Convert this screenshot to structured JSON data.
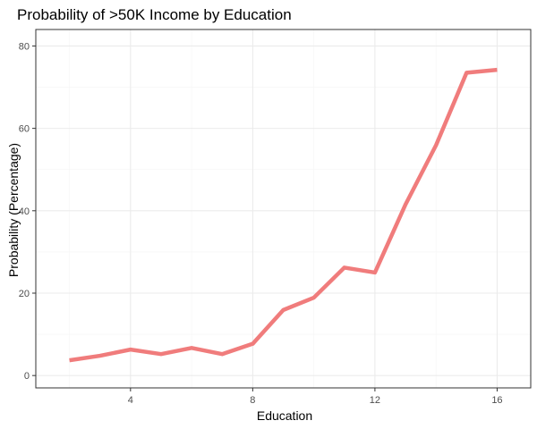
{
  "chart_data": {
    "type": "line",
    "title": "Probability of >50K Income by Education",
    "xlabel": "Education",
    "ylabel": "Probability (Percentage)",
    "xlim": [
      0.9,
      17.1
    ],
    "ylim": [
      -3,
      84
    ],
    "xticks": [
      4,
      8,
      12,
      16
    ],
    "yticks": [
      0,
      20,
      40,
      60,
      80
    ],
    "grid": true,
    "legend": "none",
    "colors": {
      "line": "#F07C7C",
      "grid_major": "#EBEBEB",
      "grid_minor": "#F5F5F5",
      "panel_border": "#333333",
      "tick": "#333333"
    },
    "series": [
      {
        "x": [
          2,
          3,
          4,
          5,
          6,
          7,
          8,
          9,
          10,
          11,
          12,
          13,
          14,
          15,
          16
        ],
        "y": [
          3.7,
          4.8,
          6.3,
          5.2,
          6.7,
          5.2,
          7.7,
          15.9,
          18.9,
          26.2,
          25.0,
          41.5,
          55.9,
          73.5,
          74.2
        ]
      }
    ]
  }
}
